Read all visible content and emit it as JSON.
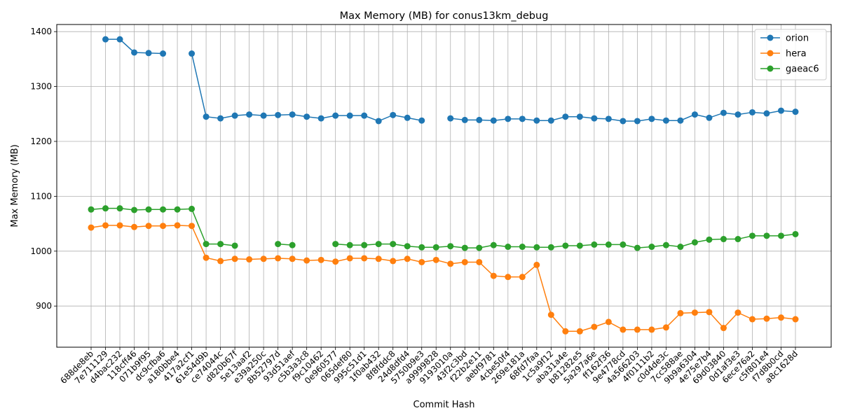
{
  "chart_data": {
    "type": "line",
    "title": "Max Memory (MB) for conus13km_debug",
    "xlabel": "Commit Hash",
    "ylabel": "Max Memory (MB)",
    "ylim": [
      825,
      1413
    ],
    "yticks": [
      900,
      1000,
      1100,
      1200,
      1300,
      1400
    ],
    "grid": true,
    "legend_position": "top-right",
    "categories": [
      "688de8eb",
      "7e711129",
      "d4bac232",
      "118cff46",
      "071b9f95",
      "dc9cfba6",
      "a180bbe4",
      "417a2cf1",
      "61e54d9b",
      "ce74044c",
      "d820b67f",
      "5e13aaf2",
      "e39a250c",
      "8b52797d",
      "93d51aef",
      "c5b3a3c8",
      "f9c10462",
      "0e960577",
      "065def80",
      "995c51d1",
      "1f0ab432",
      "8f8fddc8",
      "24d8dfd4",
      "5750b9e3",
      "a9999828",
      "9193010a",
      "43f2c3bd",
      "f22b2e11",
      "aebf9781",
      "4cbe50f4",
      "269e181a",
      "68fd7faa",
      "1c5a9f12",
      "aba31a4e",
      "b81282e5",
      "5a297a6e",
      "ff162f36",
      "9e4778cd",
      "4a566203",
      "4f0111b2",
      "c0d4de3c",
      "7cc588ae",
      "9b9a6304",
      "4e75e7b4",
      "69d03840",
      "0d1af3e3",
      "6ece76a2",
      "c5f801e4",
      "f7d8b0cd",
      "a8c1628d"
    ],
    "series": [
      {
        "name": "orion",
        "color": "#1f77b4",
        "values": [
          null,
          1386,
          1386,
          1362,
          1361,
          1360,
          null,
          1360,
          1245,
          1242,
          1247,
          1249,
          1247,
          1248,
          1249,
          1245,
          1242,
          1247,
          1247,
          1247,
          1237,
          1248,
          1243,
          1238,
          null,
          1242,
          1239,
          1239,
          1238,
          1241,
          1241,
          1238,
          1238,
          1245,
          1245,
          1242,
          1241,
          1237,
          1237,
          1241,
          1238,
          1238,
          1249,
          1243,
          1252,
          1249,
          1253,
          1251,
          1256,
          1254
        ]
      },
      {
        "name": "hera",
        "color": "#ff7f0e",
        "values": [
          1043,
          1047,
          1047,
          1044,
          1046,
          1046,
          1047,
          1046,
          988,
          982,
          986,
          985,
          986,
          987,
          986,
          983,
          984,
          981,
          987,
          987,
          986,
          982,
          986,
          980,
          984,
          977,
          980,
          980,
          955,
          953,
          953,
          975,
          884,
          854,
          854,
          862,
          871,
          857,
          857,
          857,
          861,
          887,
          888,
          889,
          860,
          888,
          876,
          877,
          879,
          876
        ]
      },
      {
        "name": "gaeac6",
        "color": "#2ca02c",
        "values": [
          1076,
          1078,
          1078,
          1075,
          1076,
          1076,
          1076,
          1077,
          1013,
          1013,
          1010,
          null,
          null,
          1013,
          1011,
          null,
          null,
          1013,
          1011,
          1011,
          1013,
          1013,
          1009,
          1007,
          1007,
          1009,
          1006,
          1006,
          1011,
          1008,
          1008,
          1007,
          1007,
          1010,
          1010,
          1012,
          1012,
          1012,
          1006,
          1008,
          1011,
          1008,
          1016,
          1021,
          1022,
          1022,
          1028,
          1028,
          1028,
          1031
        ]
      }
    ]
  }
}
